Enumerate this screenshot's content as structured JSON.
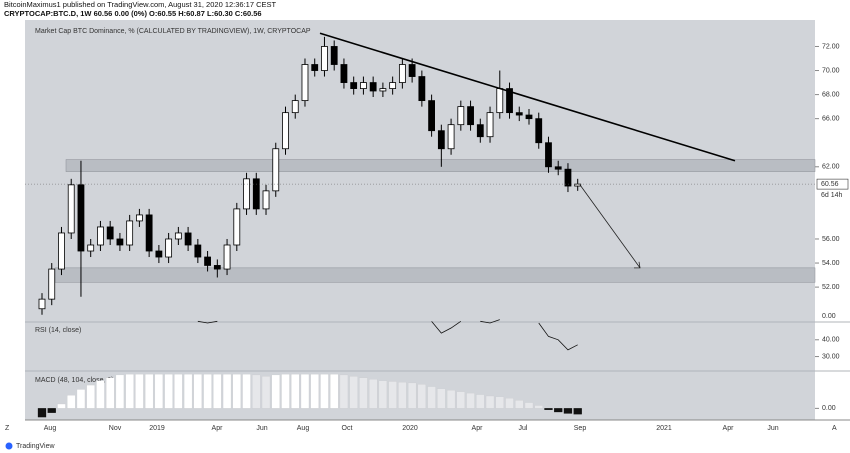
{
  "header": {
    "line1": "BitcoinMaximus1 published on TradingView.com, August 31, 2020 12:36:17 CEST",
    "line2": "CRYPTOCAP:BTC.D, 1W  60.56 0.00 (0%) O:60.55 H:60.87 L:60.30 C:60.56"
  },
  "chart_data": {
    "type": "candlestick",
    "title": "Market Cap BTC Dominance, % (CALCULATED BY TRADINGVIEW), 1W, CRYPTOCAP",
    "open": [
      50.2,
      51.0,
      53.5,
      56.5,
      60.5,
      55.0,
      55.5,
      57.0,
      56.0,
      55.5,
      57.5,
      58.0,
      55.0,
      54.5,
      56.0,
      56.5,
      55.5,
      54.5,
      53.8,
      53.5,
      55.5,
      58.5,
      61.0,
      58.5,
      60.0,
      63.5,
      66.5,
      67.5,
      70.5,
      70.0,
      72.0,
      70.5,
      69.0,
      68.5,
      69.0,
      68.3,
      68.5,
      69.0,
      70.5,
      69.5,
      67.5,
      65.0,
      63.5,
      65.5,
      67.0,
      65.5,
      64.5,
      66.5,
      68.5,
      66.5,
      66.3,
      66.0,
      64.0,
      62.0,
      61.8,
      60.4
    ],
    "high": [
      51.5,
      54.0,
      57.0,
      61.0,
      62.5,
      56.0,
      57.5,
      57.5,
      56.5,
      58.0,
      58.5,
      58.5,
      55.5,
      56.5,
      57.0,
      57.0,
      56.0,
      55.0,
      54.3,
      56.0,
      59.0,
      61.5,
      61.5,
      60.5,
      64.0,
      67.0,
      68.0,
      71.0,
      71.0,
      72.8,
      72.5,
      71.0,
      69.5,
      69.5,
      69.5,
      69.0,
      69.5,
      71.0,
      71.0,
      70.0,
      68.0,
      65.5,
      66.0,
      67.5,
      67.5,
      66.0,
      67.0,
      70.0,
      69.0,
      67.0,
      66.8,
      66.5,
      64.5,
      62.5,
      62.3,
      61.0
    ],
    "low": [
      49.7,
      50.5,
      53.0,
      56.0,
      51.2,
      54.5,
      55.0,
      55.5,
      55.0,
      55.0,
      57.0,
      54.5,
      54.0,
      54.0,
      55.5,
      55.0,
      54.0,
      53.3,
      52.8,
      53.0,
      55.0,
      58.0,
      58.0,
      58.0,
      59.5,
      63.0,
      66.0,
      67.0,
      69.5,
      69.5,
      70.0,
      68.5,
      68.0,
      68.0,
      67.8,
      67.8,
      68.0,
      68.5,
      69.0,
      67.0,
      64.5,
      62.0,
      63.0,
      65.0,
      65.0,
      64.0,
      64.0,
      66.0,
      66.0,
      65.8,
      65.5,
      63.5,
      61.5,
      61.3,
      59.9,
      60.0
    ],
    "close": [
      51.0,
      53.5,
      56.5,
      60.5,
      55.0,
      55.5,
      57.0,
      56.0,
      55.5,
      57.5,
      58.0,
      55.0,
      54.5,
      56.0,
      56.5,
      55.5,
      54.5,
      53.8,
      53.5,
      55.5,
      58.5,
      61.0,
      58.5,
      60.0,
      63.5,
      66.5,
      67.5,
      70.5,
      70.0,
      72.0,
      70.5,
      69.0,
      68.5,
      69.0,
      68.3,
      68.5,
      69.0,
      70.5,
      69.5,
      67.5,
      65.0,
      63.5,
      65.5,
      67.0,
      65.5,
      64.5,
      66.5,
      68.5,
      66.5,
      66.3,
      66.0,
      64.0,
      62.0,
      61.8,
      60.4,
      60.56
    ],
    "ylim": [
      49.1,
      74.2
    ],
    "yticks": [
      {
        "value": 72,
        "label": "72.00"
      },
      {
        "value": 70,
        "label": "70.00"
      },
      {
        "value": 68,
        "label": "68.00"
      },
      {
        "value": 66,
        "label": "66.00"
      },
      {
        "value": 62,
        "label": "62.00"
      },
      {
        "value": 56,
        "label": "56.00"
      },
      {
        "value": 54,
        "label": "54.00"
      },
      {
        "value": 52,
        "label": "52.00"
      }
    ],
    "last_price": 60.56,
    "countdown": "6d 14h",
    "pane_floor_label": "0.00",
    "zones": [
      {
        "from": 61.6,
        "to": 62.6
      },
      {
        "from": 52.4,
        "to": 53.6
      }
    ],
    "trendline": {
      "from": 73.1,
      "to": 62.5
    },
    "arrow": {
      "from": 60.5,
      "to": 53.6
    },
    "xlabels": [
      "Aug",
      "Nov",
      "2019",
      "Apr",
      "Jun",
      "Aug",
      "Oct",
      "2020",
      "Apr",
      "Jul",
      "Sep",
      "2021",
      "Apr",
      "Jun"
    ],
    "rsi": {
      "title": "RSI (14, close)",
      "ylim": [
        21.4,
        50.6
      ],
      "yticks": [
        {
          "value": 40,
          "label": "40.00"
        },
        {
          "value": 30,
          "label": "30.00"
        }
      ],
      "values": [
        null,
        null,
        null,
        null,
        null,
        null,
        null,
        null,
        null,
        null,
        null,
        null,
        null,
        null,
        null,
        null,
        51,
        50,
        51,
        null,
        null,
        null,
        null,
        null,
        null,
        null,
        null,
        null,
        null,
        null,
        null,
        null,
        null,
        null,
        null,
        null,
        null,
        null,
        null,
        null,
        51,
        44,
        47,
        51,
        null,
        51,
        50,
        52,
        null,
        null,
        null,
        50,
        42,
        40,
        34,
        37
      ]
    },
    "macd": {
      "title": "MACD (48, 104, close, 9)",
      "ylim": [
        -0.8,
        2.5
      ],
      "yticks": [
        {
          "value": 0,
          "label": "0.00"
        }
      ],
      "values": [
        -0.6,
        -0.3,
        0.3,
        0.9,
        1.3,
        1.6,
        1.9,
        2.1,
        2.3,
        2.35,
        2.35,
        2.35,
        2.35,
        2.35,
        2.35,
        2.35,
        2.35,
        2.35,
        2.35,
        2.35,
        2.35,
        2.35,
        2.3,
        2.2,
        2.3,
        2.35,
        2.35,
        2.35,
        2.35,
        2.35,
        2.35,
        2.3,
        2.2,
        2.1,
        2.0,
        1.9,
        1.85,
        1.8,
        1.75,
        1.65,
        1.5,
        1.35,
        1.25,
        1.15,
        1.05,
        0.95,
        0.85,
        0.8,
        0.7,
        0.55,
        0.4,
        0.2,
        -0.1,
        -0.25,
        -0.35,
        -0.4
      ]
    }
  },
  "footer": {
    "logo": "TradingView",
    "left": "Z",
    "right": "A"
  }
}
